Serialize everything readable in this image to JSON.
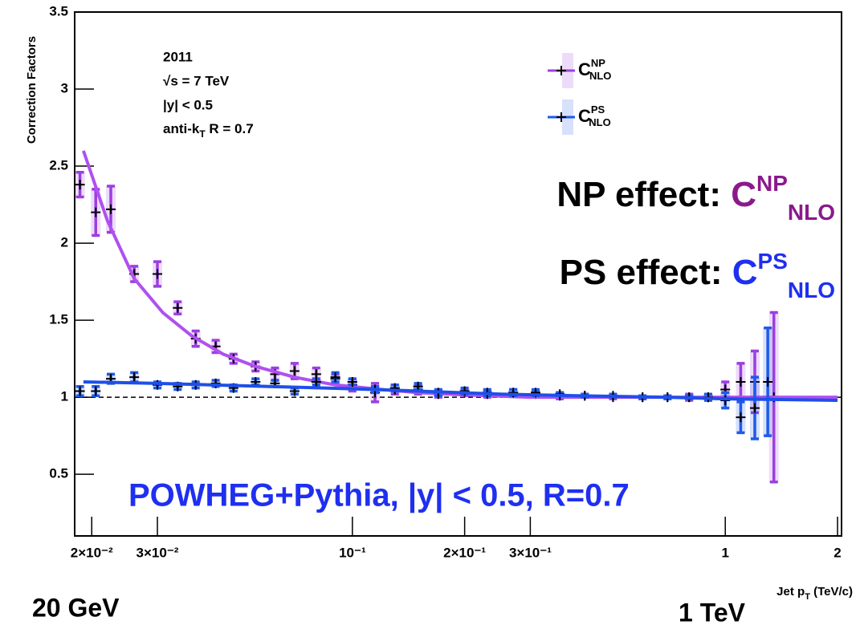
{
  "chart_data": {
    "type": "scatter",
    "y_label": "Correction Factors",
    "x_label": {
      "text": "Jet p",
      "sub": "T",
      "tail": " (TeV/c)"
    },
    "xlog": true,
    "xlim": [
      0.018,
      2.05
    ],
    "ylim": [
      0.1,
      3.5
    ],
    "xticks": [
      {
        "value": 0.02,
        "label": "2×10⁻²"
      },
      {
        "value": 0.03,
        "label": "3×10⁻²"
      },
      {
        "value": 0.1,
        "label": "10⁻¹"
      },
      {
        "value": 0.2,
        "label": "2×10⁻¹"
      },
      {
        "value": 0.3,
        "label": "3×10⁻¹"
      },
      1,
      2
    ],
    "yticks": [
      0.5,
      1,
      1.5,
      2,
      2.5,
      3,
      3.5
    ],
    "hline": 1,
    "legend": "top-right",
    "series": [
      {
        "name": "C",
        "name_sup": "NP",
        "name_sub": "NLO",
        "color": "#9b3fe0",
        "marker_color": "#000000",
        "x": [
          0.0186,
          0.0205,
          0.0225,
          0.026,
          0.03,
          0.034,
          0.038,
          0.043,
          0.048,
          0.055,
          0.062,
          0.07,
          0.08,
          0.09,
          0.1,
          0.115,
          0.13,
          0.15,
          0.17,
          0.2,
          0.23,
          0.27,
          0.31,
          0.36,
          0.42,
          0.5,
          0.6,
          0.7,
          0.8,
          0.9,
          1.0,
          1.1,
          1.2,
          1.35
        ],
        "values": [
          2.38,
          2.2,
          2.22,
          1.8,
          1.8,
          1.58,
          1.38,
          1.33,
          1.25,
          1.2,
          1.15,
          1.17,
          1.15,
          1.12,
          1.08,
          1.03,
          1.05,
          1.05,
          1.02,
          1.03,
          1.02,
          1.03,
          1.02,
          1.01,
          1.01,
          1.0,
          1.0,
          1.0,
          1.0,
          1.0,
          1.05,
          1.1,
          1.1,
          1.0
        ],
        "errors": [
          0.08,
          0.15,
          0.15,
          0.05,
          0.08,
          0.04,
          0.05,
          0.04,
          0.03,
          0.03,
          0.04,
          0.05,
          0.04,
          0.03,
          0.04,
          0.06,
          0.03,
          0.03,
          0.02,
          0.02,
          0.02,
          0.02,
          0.02,
          0.02,
          0.01,
          0.01,
          0.01,
          0.01,
          0.02,
          0.02,
          0.05,
          0.12,
          0.2,
          0.55
        ],
        "fit": {
          "color": "#b050f0",
          "x": [
            0.019,
            0.022,
            0.026,
            0.031,
            0.037,
            0.045,
            0.055,
            0.07,
            0.09,
            0.12,
            0.15,
            0.2,
            0.3,
            0.5,
            1.0,
            2.0
          ],
          "values": [
            2.6,
            2.15,
            1.77,
            1.55,
            1.4,
            1.28,
            1.2,
            1.13,
            1.08,
            1.05,
            1.03,
            1.015,
            1.0,
            1.0,
            1.0,
            1.0
          ]
        }
      },
      {
        "name": "C",
        "name_sup": "PS",
        "name_sub": "NLO",
        "color": "#1f5ae8",
        "marker_color": "#000000",
        "x": [
          0.0186,
          0.0205,
          0.0225,
          0.026,
          0.03,
          0.034,
          0.038,
          0.043,
          0.048,
          0.055,
          0.062,
          0.07,
          0.08,
          0.09,
          0.1,
          0.115,
          0.13,
          0.15,
          0.17,
          0.2,
          0.23,
          0.27,
          0.31,
          0.36,
          0.42,
          0.5,
          0.6,
          0.7,
          0.8,
          0.9,
          1.0,
          1.1,
          1.2,
          1.3
        ],
        "values": [
          1.04,
          1.04,
          1.12,
          1.13,
          1.08,
          1.07,
          1.08,
          1.09,
          1.06,
          1.1,
          1.09,
          1.04,
          1.1,
          1.13,
          1.1,
          1.05,
          1.06,
          1.07,
          1.03,
          1.04,
          1.03,
          1.03,
          1.03,
          1.02,
          1.01,
          1.01,
          1.0,
          1.0,
          1.0,
          1.0,
          0.98,
          0.87,
          0.93,
          1.1
        ],
        "errors": [
          0.03,
          0.03,
          0.03,
          0.03,
          0.02,
          0.02,
          0.02,
          0.02,
          0.02,
          0.02,
          0.02,
          0.02,
          0.02,
          0.03,
          0.02,
          0.02,
          0.02,
          0.02,
          0.02,
          0.02,
          0.02,
          0.02,
          0.02,
          0.01,
          0.01,
          0.01,
          0.01,
          0.01,
          0.01,
          0.02,
          0.05,
          0.1,
          0.2,
          0.35
        ],
        "fit": {
          "color": "#1f4fe8",
          "x": [
            0.019,
            0.03,
            0.06,
            0.1,
            0.15,
            0.25,
            0.4,
            0.7,
            1.0,
            2.0
          ],
          "values": [
            1.1,
            1.09,
            1.07,
            1.055,
            1.04,
            1.02,
            1.01,
            1.0,
            0.99,
            0.98
          ]
        }
      }
    ],
    "annotations": {
      "info": [
        "2011",
        "√s = 7 TeV",
        " |y| < 0.5"
      ],
      "algo": {
        "text": "anti-k",
        "sub": "T",
        "tail": " R = 0.7"
      },
      "np_effect": {
        "text": "NP effect: ",
        "symbol": "C",
        "sup": "NP",
        "sub": "NLO"
      },
      "ps_effect": {
        "text": "PS effect: ",
        "symbol": "C",
        "sup": "PS",
        "sub": "NLO"
      },
      "generator": "POWHEG+Pythia, |y| < 0.5, R=0.7",
      "low": "20 GeV",
      "high": "1 TeV"
    }
  }
}
